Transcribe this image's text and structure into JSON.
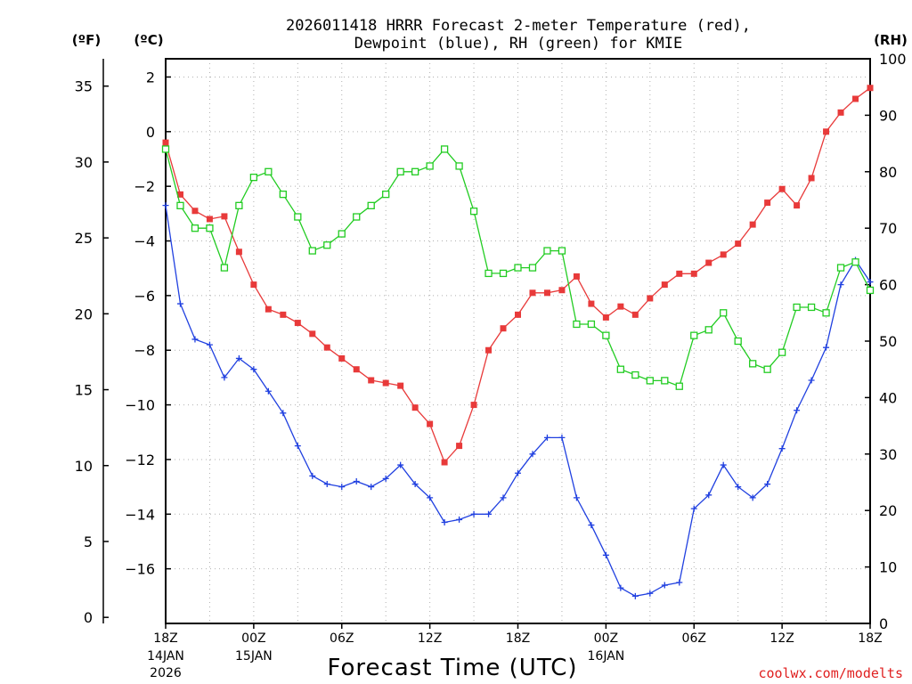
{
  "chart_data": {
    "type": "line",
    "title_line1": "2026011418 HRRR Forecast 2-meter Temperature (red),",
    "title_line2": "Dewpoint (blue), RH (green) for KMIE",
    "left_outer_unit": "(ºF)",
    "left_inner_unit": "(ºC)",
    "right_unit": "(RH)",
    "xlabel": "Forecast Time (UTC)",
    "credit": "coolwx.com/modelts",
    "x_range_hours": [
      0,
      48
    ],
    "celsius_range": [
      -18,
      2.667
    ],
    "fahrenheit_ticks": [
      "0",
      "5",
      "10",
      "15",
      "20",
      "25",
      "30",
      "35"
    ],
    "celsius_ticks": [
      "2",
      "0",
      "−2",
      "−4",
      "−6",
      "−8",
      "−10",
      "−12",
      "−14",
      "−16"
    ],
    "rh_ticks": [
      "0",
      "10",
      "20",
      "30",
      "40",
      "50",
      "60",
      "70",
      "80",
      "90",
      "100"
    ],
    "x_ticks": [
      {
        "hour": 0,
        "label": "18Z",
        "sub1": "14JAN",
        "sub2": "2026"
      },
      {
        "hour": 6,
        "label": "00Z",
        "sub1": "15JAN",
        "sub2": ""
      },
      {
        "hour": 12,
        "label": "06Z",
        "sub1": "",
        "sub2": ""
      },
      {
        "hour": 18,
        "label": "12Z",
        "sub1": "",
        "sub2": ""
      },
      {
        "hour": 24,
        "label": "18Z",
        "sub1": "",
        "sub2": ""
      },
      {
        "hour": 30,
        "label": "00Z",
        "sub1": "16JAN",
        "sub2": ""
      },
      {
        "hour": 36,
        "label": "06Z",
        "sub1": "",
        "sub2": ""
      },
      {
        "hour": 42,
        "label": "12Z",
        "sub1": "",
        "sub2": ""
      },
      {
        "hour": 48,
        "label": "18Z",
        "sub1": "",
        "sub2": ""
      }
    ],
    "series": [
      {
        "name": "Temperature",
        "units": "C",
        "color": "#e83a3a",
        "values": [
          -0.4,
          -2.3,
          -2.9,
          -3.2,
          -3.1,
          -4.4,
          -5.6,
          -6.5,
          -6.7,
          -7.0,
          -7.4,
          -7.9,
          -8.3,
          -8.7,
          -9.1,
          -9.2,
          -9.3,
          -10.1,
          -10.7,
          -12.1,
          -11.5,
          -10.0,
          -8.0,
          -7.2,
          -6.7,
          -5.9,
          -5.9,
          -5.8,
          -5.3,
          -6.3,
          -6.8,
          -6.4,
          -6.7,
          -6.1,
          -5.6,
          -5.2,
          -5.2,
          -4.8,
          -4.5,
          -4.1,
          -3.4,
          -2.6,
          -2.1,
          -2.7,
          -1.7,
          0.0,
          0.7,
          1.2,
          1.6
        ]
      },
      {
        "name": "Dewpoint",
        "units": "C",
        "color": "#2040e0",
        "values": [
          -2.7,
          -6.3,
          -7.6,
          -7.8,
          -9.0,
          -8.3,
          -8.7,
          -9.5,
          -10.3,
          -11.5,
          -12.6,
          -12.9,
          -13.0,
          -12.8,
          -13.0,
          -12.7,
          -12.2,
          -12.9,
          -13.4,
          -14.3,
          -14.2,
          -14.0,
          -14.0,
          -13.4,
          -12.5,
          -11.8,
          -11.2,
          -11.2,
          -13.4,
          -14.4,
          -15.5,
          -16.7,
          -17.0,
          -16.9,
          -16.6,
          -16.5,
          -13.8,
          -13.3,
          -12.2,
          -13.0,
          -13.4,
          -12.9,
          -11.6,
          -10.2,
          -9.1,
          -7.9,
          -5.6,
          -4.7,
          -5.5
        ]
      },
      {
        "name": "RH",
        "units": "%",
        "color": "#22cc22",
        "values": [
          84,
          74,
          70,
          70,
          63,
          74,
          79,
          80,
          76,
          72,
          66,
          67,
          69,
          72,
          74,
          76,
          80,
          80,
          81,
          84,
          81,
          73,
          62,
          62,
          63,
          63,
          66,
          66,
          53,
          53,
          51,
          45,
          44,
          43,
          43,
          42,
          51,
          52,
          55,
          50,
          46,
          45,
          48,
          56,
          56,
          55,
          63,
          64,
          59
        ]
      }
    ]
  }
}
